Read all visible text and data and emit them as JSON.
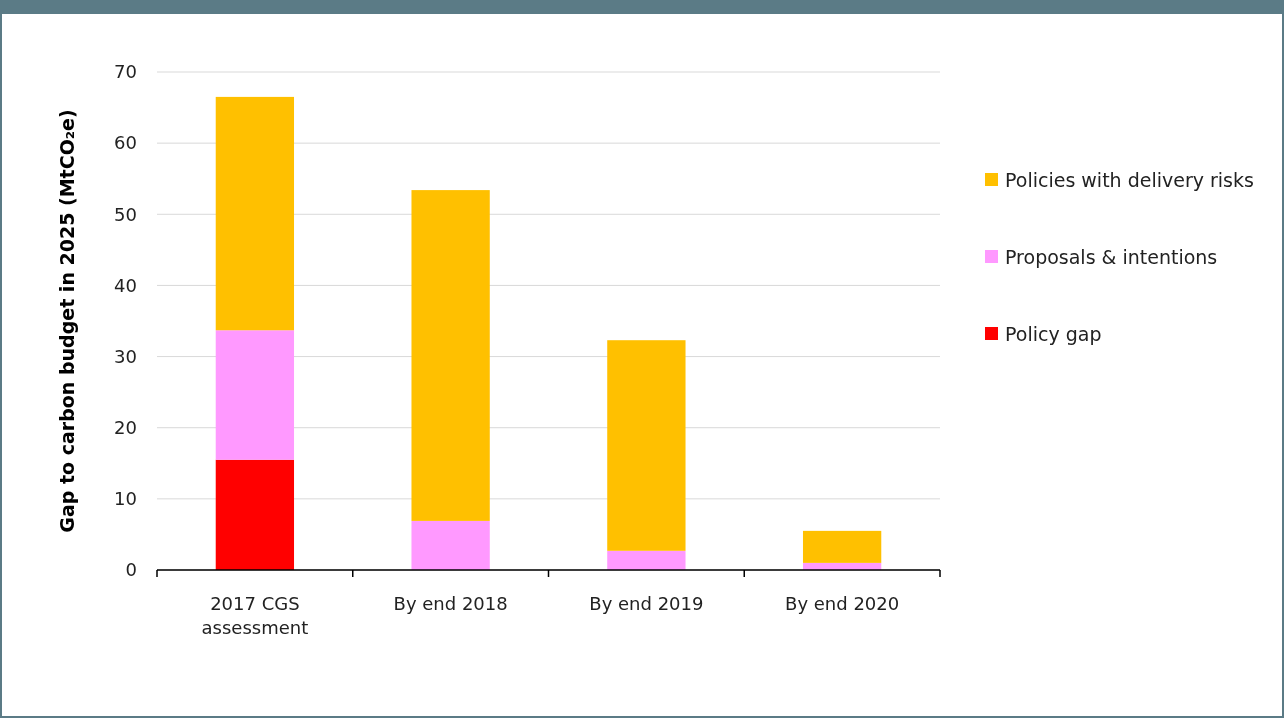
{
  "chart_data": {
    "type": "bar",
    "stacked": true,
    "ylabel": "Gap to carbon budget in 2025 (MtCO₂e)",
    "categories": [
      "2017 CGS assessment",
      "By end 2018",
      "By end 2019",
      "By end 2020"
    ],
    "series": [
      {
        "name": "Policy gap",
        "color": "#ff0000",
        "values": [
          15.5,
          0,
          0,
          0
        ]
      },
      {
        "name": "Proposals & intentions",
        "color": "#ff99ff",
        "values": [
          18.2,
          6.9,
          2.7,
          1.0
        ]
      },
      {
        "name": "Policies with delivery risks",
        "color": "#ffc000",
        "values": [
          32.8,
          46.5,
          29.6,
          4.5
        ]
      }
    ],
    "ylim": [
      0,
      70
    ],
    "yticks": [
      0,
      10,
      20,
      30,
      40,
      50,
      60,
      70
    ],
    "grid": "y",
    "legend": "right"
  }
}
